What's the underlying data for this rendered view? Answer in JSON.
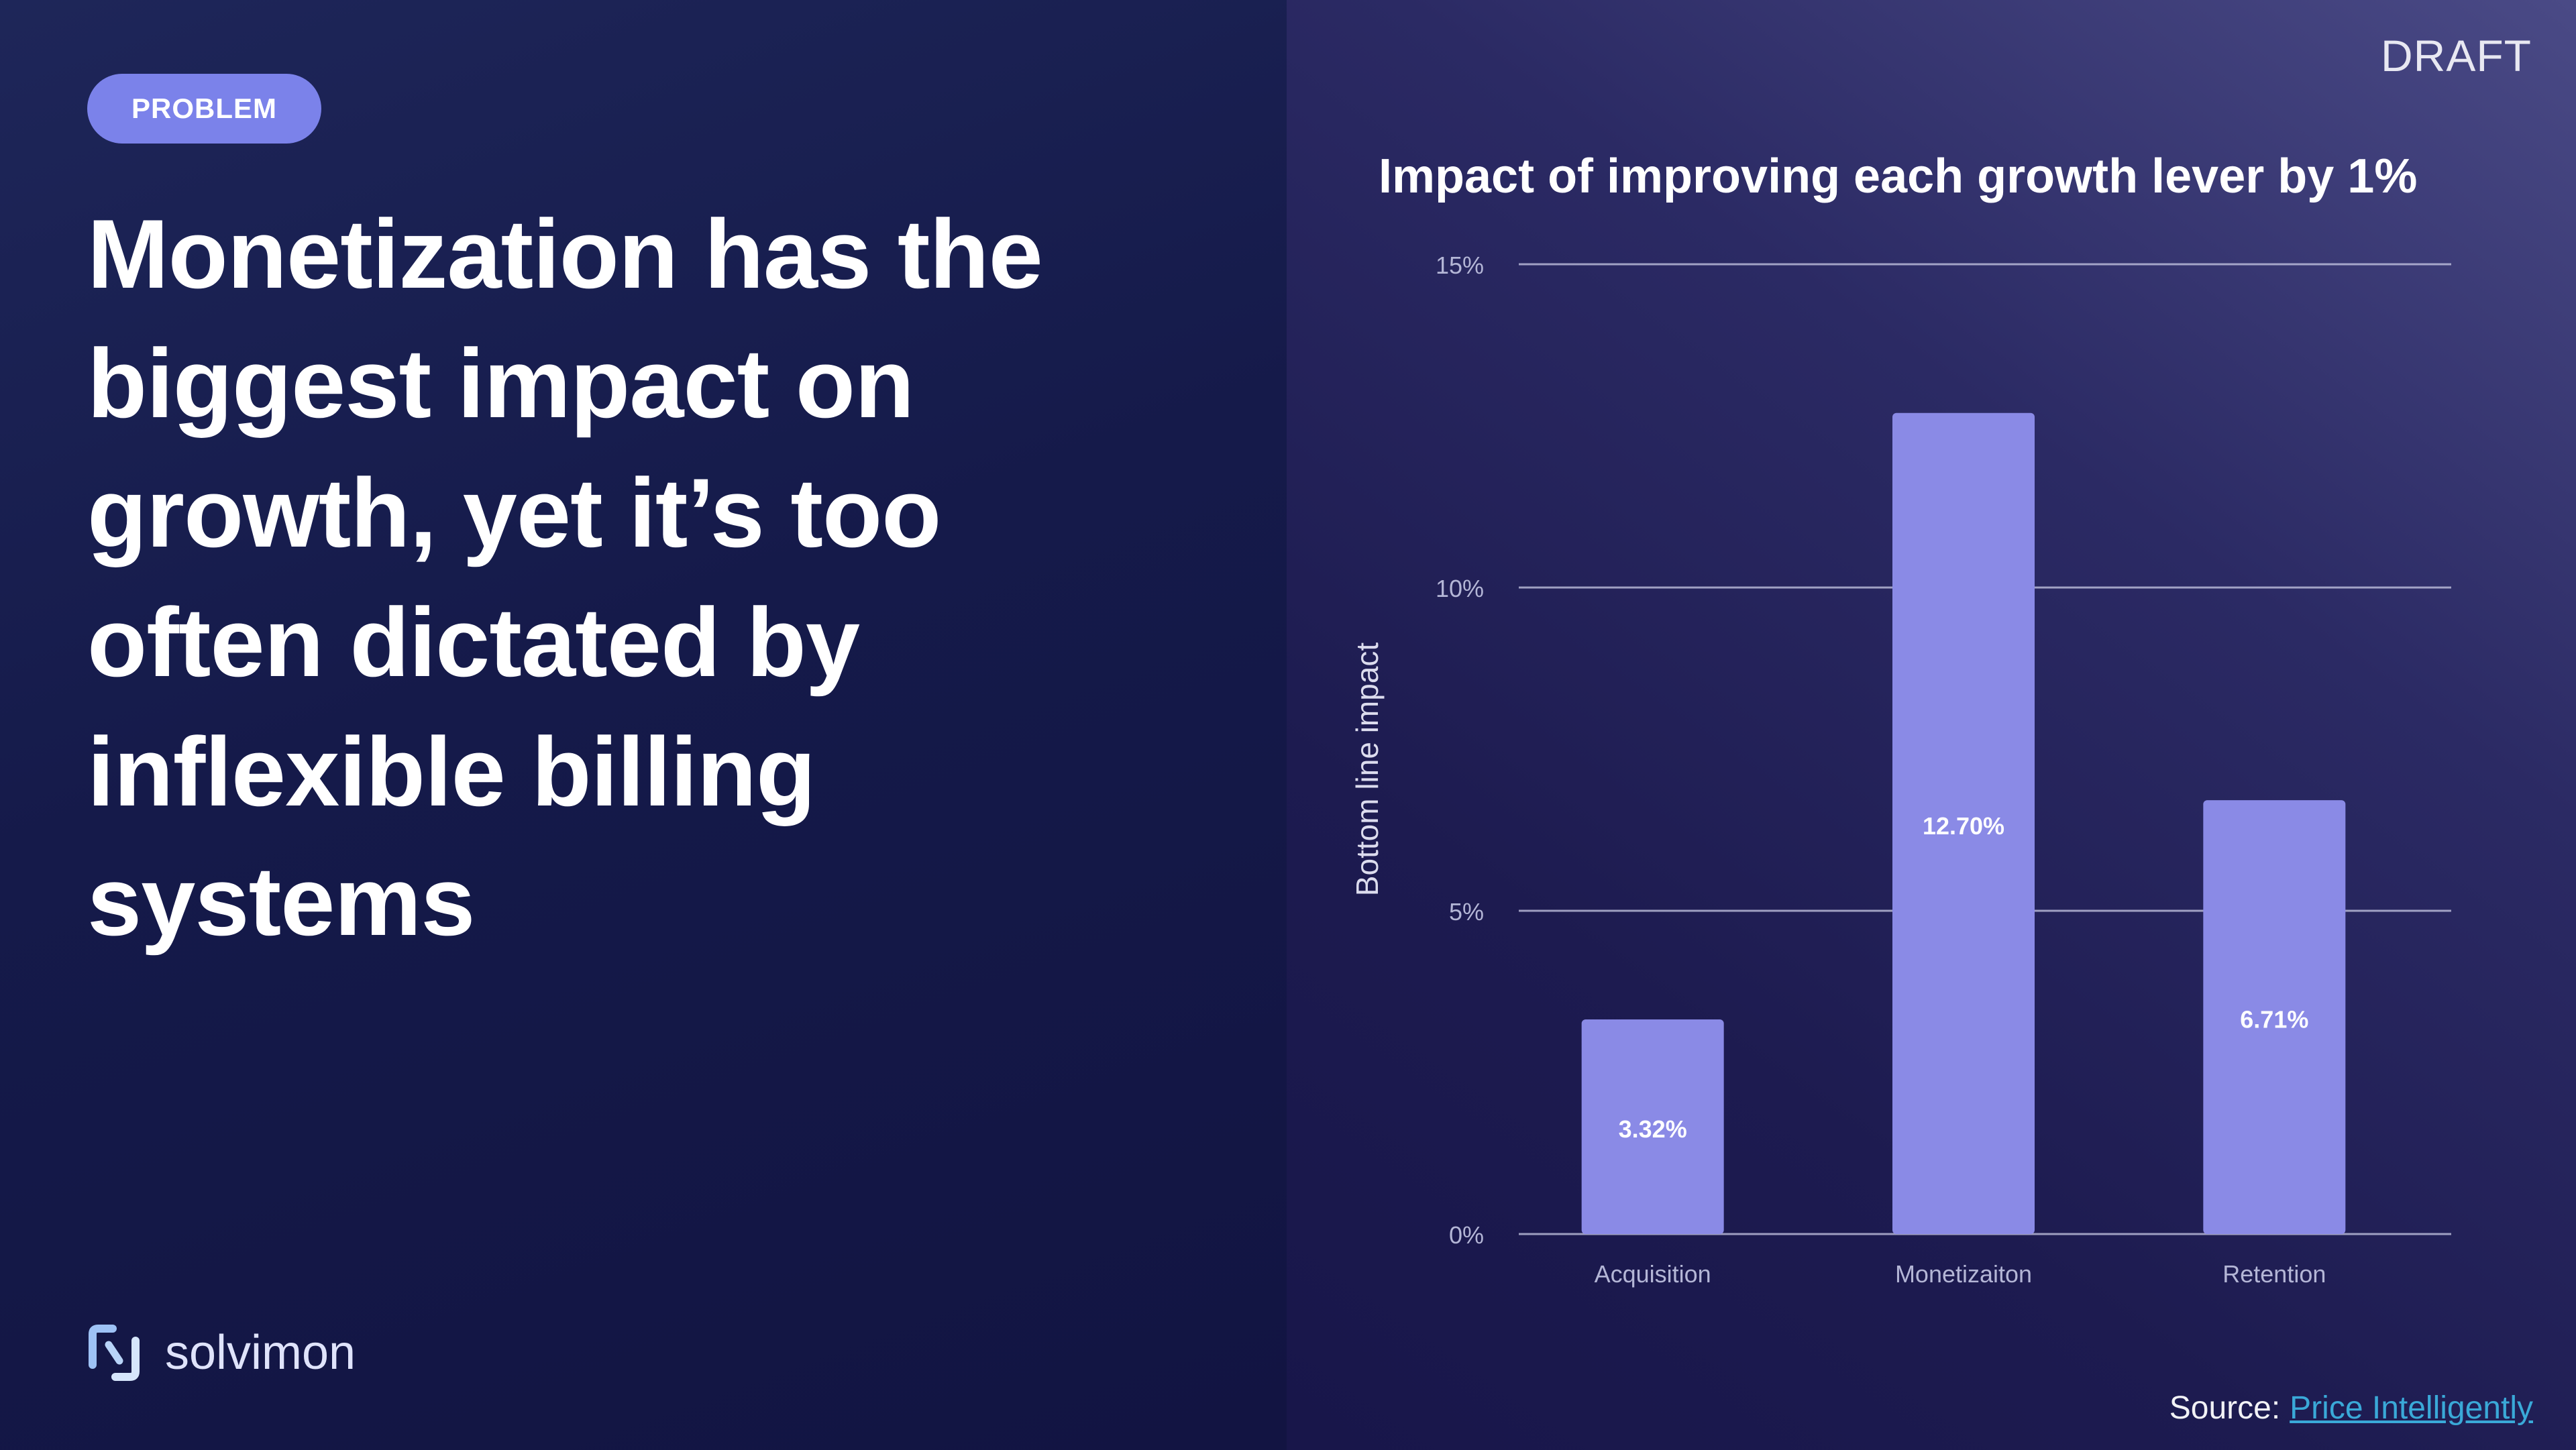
{
  "slide": {
    "badge": "PROBLEM",
    "headline": "Monetization has the biggest impact on growth, yet it’s too often dictated by inflexible billing systems",
    "draft_label": "DRAFT",
    "brand": {
      "name": "solvimon",
      "icon": "solvimon-logo-icon"
    },
    "source": {
      "prefix": "Source:",
      "link_text": "Price Intelligently"
    },
    "colors": {
      "accent": "#7b82ea",
      "bar": "#8a8ae6",
      "link": "#3aa9d8"
    }
  },
  "chart_data": {
    "type": "bar",
    "title": "Impact of improving each growth lever by 1%",
    "xlabel": "",
    "ylabel": "Bottom line impact",
    "ylim": [
      0,
      15
    ],
    "yticks": [
      0,
      5,
      10,
      15
    ],
    "ytick_labels": [
      "0%",
      "5%",
      "10%",
      "15%"
    ],
    "categories": [
      "Acquisition",
      "Monetizaiton",
      "Retention"
    ],
    "values": [
      3.32,
      12.7,
      6.71
    ],
    "data_labels": [
      "3.32%",
      "12.70%",
      "6.71%"
    ],
    "grid": true,
    "legend": "none"
  }
}
